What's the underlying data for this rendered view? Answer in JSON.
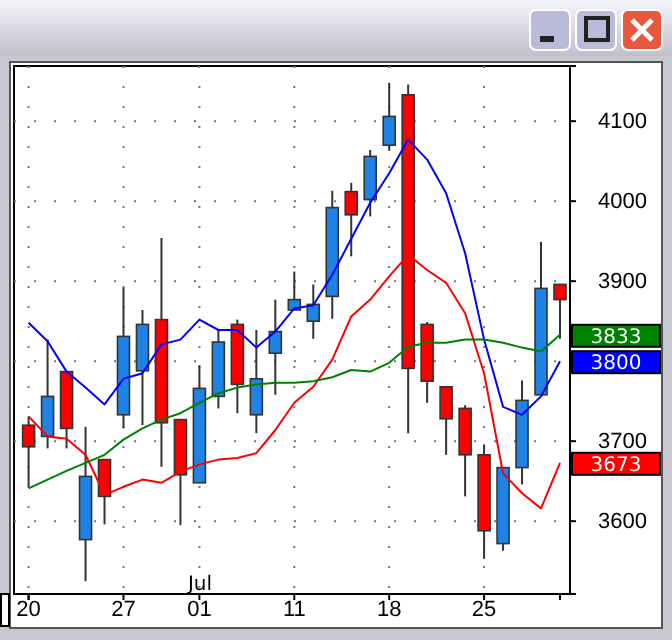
{
  "chart_data": {
    "type": "candlestick",
    "categories": [
      "20",
      null,
      null,
      null,
      null,
      "27",
      null,
      null,
      null,
      "01",
      null,
      null,
      null,
      null,
      "11",
      null,
      null,
      null,
      null,
      "18",
      null,
      null,
      null,
      null,
      "25",
      null,
      null,
      null,
      null
    ],
    "ohlc": [
      [
        3720,
        3731,
        3643,
        3693
      ],
      [
        3706,
        3827,
        3691,
        3756
      ],
      [
        3787,
        3787,
        3691,
        3716
      ],
      [
        3577,
        3718,
        3525,
        3656
      ],
      [
        3677,
        3677,
        3596,
        3631
      ],
      [
        3733,
        3892,
        3716,
        3831
      ],
      [
        3788,
        3864,
        3720,
        3846
      ],
      [
        3852,
        3954,
        3668,
        3723
      ],
      [
        3727,
        3727,
        3595,
        3658
      ],
      [
        3648,
        3795,
        3648,
        3766
      ],
      [
        3756,
        3839,
        3741,
        3824
      ],
      [
        3846,
        3852,
        3735,
        3771
      ],
      [
        3733,
        3839,
        3710,
        3778
      ],
      [
        3810,
        3877,
        3758,
        3837
      ],
      [
        3864,
        3912,
        3864,
        3877
      ],
      [
        3850,
        3896,
        3828,
        3871
      ],
      [
        3881,
        4013,
        3853,
        3992
      ],
      [
        4012,
        4023,
        3931,
        3983
      ],
      [
        4002,
        4064,
        3981,
        4056
      ],
      [
        4070,
        4148,
        4063,
        4106
      ],
      [
        4133,
        4146,
        3710,
        3791
      ],
      [
        3846,
        3849,
        3748,
        3775
      ],
      [
        3768,
        3768,
        3683,
        3728
      ],
      [
        3741,
        3745,
        3631,
        3683
      ],
      [
        3683,
        3696,
        3553,
        3588
      ],
      [
        3572,
        3667,
        3563,
        3667
      ],
      [
        3667,
        3776,
        3646,
        3751
      ],
      [
        3758,
        3949,
        3758,
        3891
      ],
      [
        3896,
        3896,
        3828,
        3877
      ]
    ],
    "colors": [
      "#ff0000",
      "#1e82e6",
      "#ff0000",
      "#1e82e6",
      "#ff0000",
      "#1e82e6",
      "#1e82e6",
      "#ff0000",
      "#ff0000",
      "#1e82e6",
      "#1e82e6",
      "#ff0000",
      "#1e82e6",
      "#1e82e6",
      "#1e82e6",
      "#1e82e6",
      "#1e82e6",
      "#ff0000",
      "#1e82e6",
      "#1e82e6",
      "#ff0000",
      "#ff0000",
      "#ff0000",
      "#ff0000",
      "#ff0000",
      "#1e82e6",
      "#1e82e6",
      "#1e82e6",
      "#ff0000"
    ],
    "series": [
      {
        "type": "line",
        "color": "#0000ff",
        "values": [
          3848,
          3825,
          3787,
          3767,
          3746,
          3778,
          3785,
          3821,
          3827,
          3852,
          3839,
          3839,
          3817,
          3837,
          3866,
          3870,
          3908,
          3953,
          3998,
          4035,
          4077,
          4052,
          4010,
          3935,
          3827,
          3743,
          3733,
          3756,
          3800
        ],
        "value_labels": [
          null,
          null,
          null,
          null,
          null,
          null,
          null,
          null,
          null,
          null,
          null,
          null,
          null,
          null,
          null,
          null,
          null,
          null,
          null,
          null,
          null,
          null,
          null,
          null,
          null,
          null,
          null,
          null,
          "3800"
        ]
      },
      {
        "type": "line",
        "color": "#ff0000",
        "values": [
          3731,
          3706,
          3703,
          3683,
          3633,
          3643,
          3652,
          3648,
          3662,
          3671,
          3677,
          3679,
          3685,
          3714,
          3748,
          3768,
          3802,
          3856,
          3877,
          3906,
          3933,
          3914,
          3898,
          3860,
          3785,
          3660,
          3635,
          3616,
          3673
        ],
        "value_labels": [
          null,
          null,
          null,
          null,
          null,
          null,
          null,
          null,
          null,
          null,
          null,
          null,
          null,
          null,
          null,
          null,
          null,
          null,
          null,
          null,
          null,
          null,
          null,
          null,
          null,
          null,
          null,
          null,
          "3673"
        ]
      },
      {
        "type": "line",
        "color": "#008000",
        "values": [
          3641,
          3652,
          3663,
          3673,
          3683,
          3702,
          3716,
          3727,
          3735,
          3748,
          3760,
          3767,
          3771,
          3773,
          3773,
          3775,
          3780,
          3789,
          3787,
          3798,
          3818,
          3823,
          3823,
          3827,
          3827,
          3823,
          3817,
          3812,
          3833
        ],
        "value_labels": [
          null,
          null,
          null,
          null,
          null,
          null,
          null,
          null,
          null,
          null,
          null,
          null,
          null,
          null,
          null,
          null,
          null,
          null,
          null,
          null,
          null,
          null,
          null,
          null,
          null,
          null,
          null,
          null,
          "3833"
        ]
      }
    ],
    "ylim": [
      3509,
      4169
    ],
    "yticks": [
      3600,
      3700,
      3800,
      3900,
      4000,
      4100
    ],
    "grid": true,
    "annotations": [
      "Jul"
    ]
  }
}
